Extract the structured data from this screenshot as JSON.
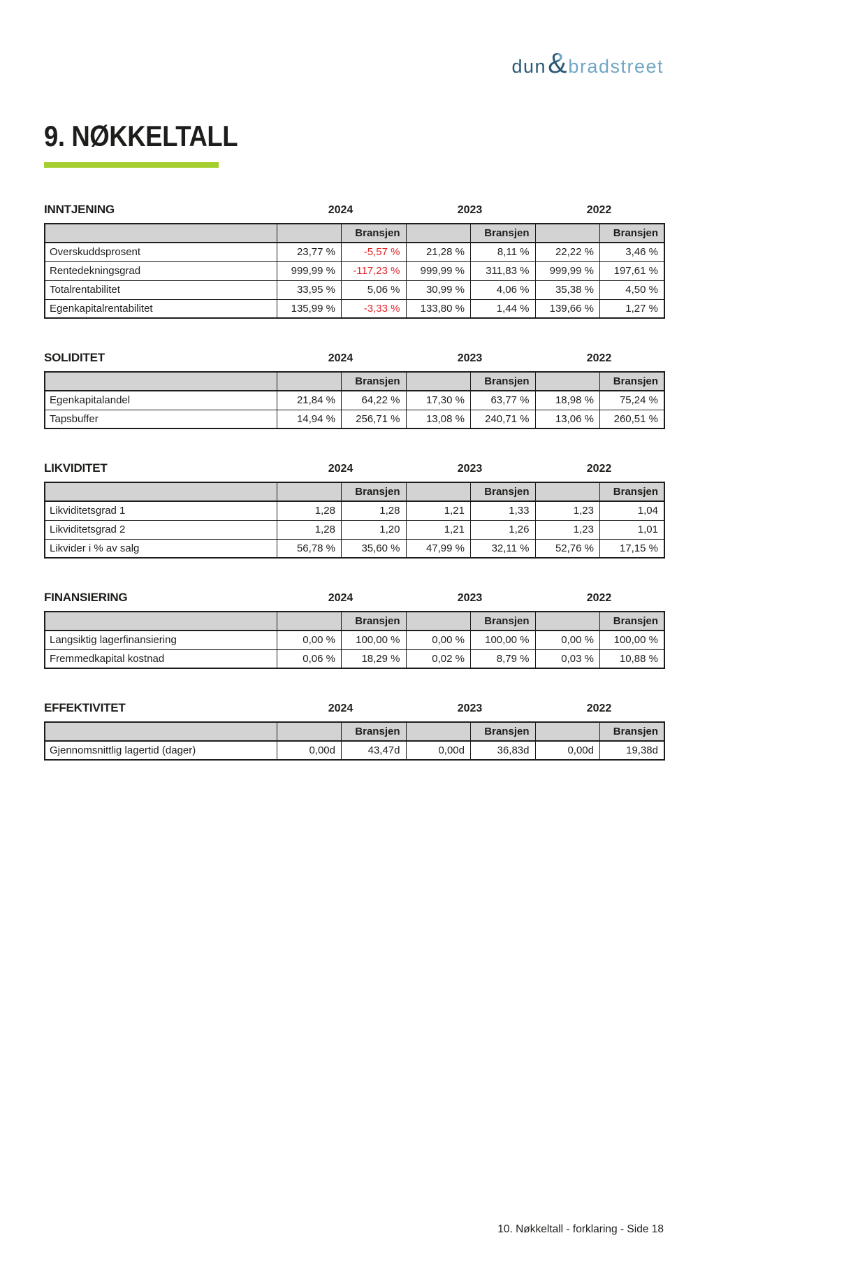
{
  "logo": {
    "dun": "dun",
    "amp": "&",
    "bradstreet": "bradstreet"
  },
  "page_title": "9. NØKKELTALL",
  "years": [
    "2024",
    "2023",
    "2022"
  ],
  "bransjen_label": "Bransjen",
  "sections": [
    {
      "title": "INNTJENING",
      "rows": [
        {
          "label": "Overskuddsprosent",
          "values": [
            "23,77 %",
            "-5,57 %",
            "21,28 %",
            "8,11 %",
            "22,22 %",
            "3,46 %"
          ]
        },
        {
          "label": "Rentedekningsgrad",
          "values": [
            "999,99 %",
            "-117,23 %",
            "999,99 %",
            "311,83 %",
            "999,99 %",
            "197,61 %"
          ]
        },
        {
          "label": "Totalrentabilitet",
          "values": [
            "33,95 %",
            "5,06 %",
            "30,99 %",
            "4,06 %",
            "35,38 %",
            "4,50 %"
          ]
        },
        {
          "label": "Egenkapitalrentabilitet",
          "values": [
            "135,99 %",
            "-3,33 %",
            "133,80 %",
            "1,44 %",
            "139,66 %",
            "1,27 %"
          ]
        }
      ]
    },
    {
      "title": "SOLIDITET",
      "rows": [
        {
          "label": "Egenkapitalandel",
          "values": [
            "21,84 %",
            "64,22 %",
            "17,30 %",
            "63,77 %",
            "18,98 %",
            "75,24 %"
          ]
        },
        {
          "label": "Tapsbuffer",
          "values": [
            "14,94 %",
            "256,71 %",
            "13,08 %",
            "240,71 %",
            "13,06 %",
            "260,51 %"
          ]
        }
      ]
    },
    {
      "title": "LIKVIDITET",
      "rows": [
        {
          "label": "Likviditetsgrad 1",
          "values": [
            "1,28",
            "1,28",
            "1,21",
            "1,33",
            "1,23",
            "1,04"
          ]
        },
        {
          "label": "Likviditetsgrad 2",
          "values": [
            "1,28",
            "1,20",
            "1,21",
            "1,26",
            "1,23",
            "1,01"
          ]
        },
        {
          "label": "Likvider i % av salg",
          "values": [
            "56,78 %",
            "35,60 %",
            "47,99 %",
            "32,11 %",
            "52,76 %",
            "17,15 %"
          ]
        }
      ]
    },
    {
      "title": "FINANSIERING",
      "rows": [
        {
          "label": "Langsiktig lagerfinansiering",
          "values": [
            "0,00 %",
            "100,00 %",
            "0,00 %",
            "100,00 %",
            "0,00 %",
            "100,00 %"
          ]
        },
        {
          "label": "Fremmedkapital kostnad",
          "values": [
            "0,06 %",
            "18,29 %",
            "0,02 %",
            "8,79 %",
            "0,03 %",
            "10,88 %"
          ]
        }
      ]
    },
    {
      "title": "EFFEKTIVITET",
      "rows": [
        {
          "label": "Gjennomsnittlig lagertid (dager)",
          "values": [
            "0,00d",
            "43,47d",
            "0,00d",
            "36,83d",
            "0,00d",
            "19,38d"
          ]
        }
      ]
    }
  ],
  "footer": "10. Nøkkeltall - forklaring - Side 18",
  "colors": {
    "accent_green": "#a4ce2f",
    "negative_red": "#e12528",
    "logo_dark": "#2b5a74",
    "logo_light": "#6fa7c5",
    "table_header_bg": "#d3d3d3"
  }
}
